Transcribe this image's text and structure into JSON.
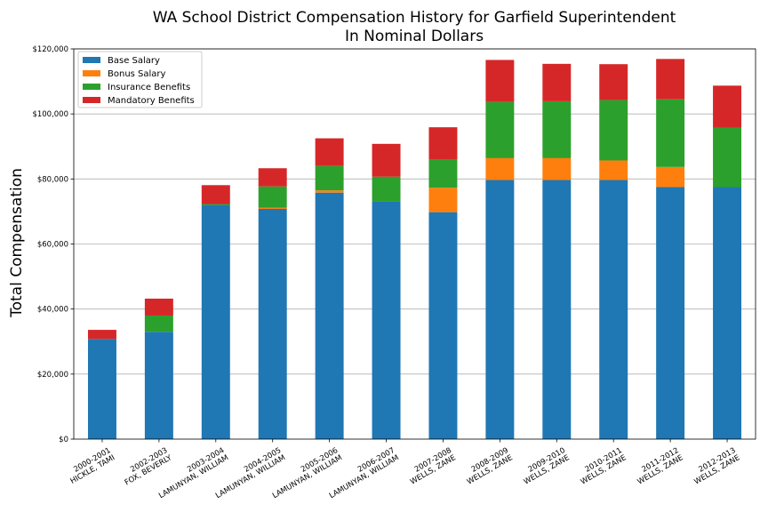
{
  "chart_data": {
    "type": "bar",
    "stacked": true,
    "title": "WA School District Compensation History for Garfield Superintendent",
    "subtitle": "In Nominal Dollars",
    "xlabel": "",
    "ylabel": "Total Compensation",
    "ylim": [
      0,
      120000
    ],
    "yticks": [
      "$0",
      "$20,000",
      "$40,000",
      "$60,000",
      "$80,000",
      "$100,000",
      "$120,000"
    ],
    "ytick_values": [
      0,
      20000,
      40000,
      60000,
      80000,
      100000,
      120000
    ],
    "grid": "horizontal",
    "legend_position": "top-left",
    "categories": [
      [
        "2000-2001",
        "HICKLE, TAMI"
      ],
      [
        "2002-2003",
        "FOX, BEVERLY"
      ],
      [
        "2003-2004",
        "LAMUNYAN, WILLIAM"
      ],
      [
        "2004-2005",
        "LAMUNYAN, WILLIAM"
      ],
      [
        "2005-2006",
        "LAMUNYAN, WILLIAM"
      ],
      [
        "2006-2007",
        "LAMUNYAN, WILLIAM"
      ],
      [
        "2007-2008",
        "WELLS, ZANE"
      ],
      [
        "2008-2009",
        "WELLS, ZANE"
      ],
      [
        "2009-2010",
        "WELLS, ZANE"
      ],
      [
        "2010-2011",
        "WELLS, ZANE"
      ],
      [
        "2011-2012",
        "WELLS, ZANE"
      ],
      [
        "2012-2013",
        "WELLS, ZANE"
      ]
    ],
    "series": [
      {
        "name": "Base Salary",
        "color": "#1f77b4",
        "values": [
          30800,
          33000,
          72000,
          70800,
          75800,
          73000,
          69800,
          79700,
          79700,
          79700,
          77500,
          77500
        ]
      },
      {
        "name": "Bonus Salary",
        "color": "#ff7f0e",
        "values": [
          0,
          0,
          0,
          400,
          700,
          0,
          7500,
          6700,
          6700,
          6000,
          6200,
          0
        ]
      },
      {
        "name": "Insurance Benefits",
        "color": "#2ca02c",
        "values": [
          0,
          5000,
          300,
          6500,
          7500,
          7700,
          8800,
          17300,
          17500,
          18600,
          20800,
          18300
        ]
      },
      {
        "name": "Mandatory Benefits",
        "color": "#d62728",
        "values": [
          2800,
          5200,
          5800,
          5600,
          8500,
          10100,
          9800,
          12900,
          11500,
          11000,
          12400,
          12900
        ]
      }
    ]
  }
}
